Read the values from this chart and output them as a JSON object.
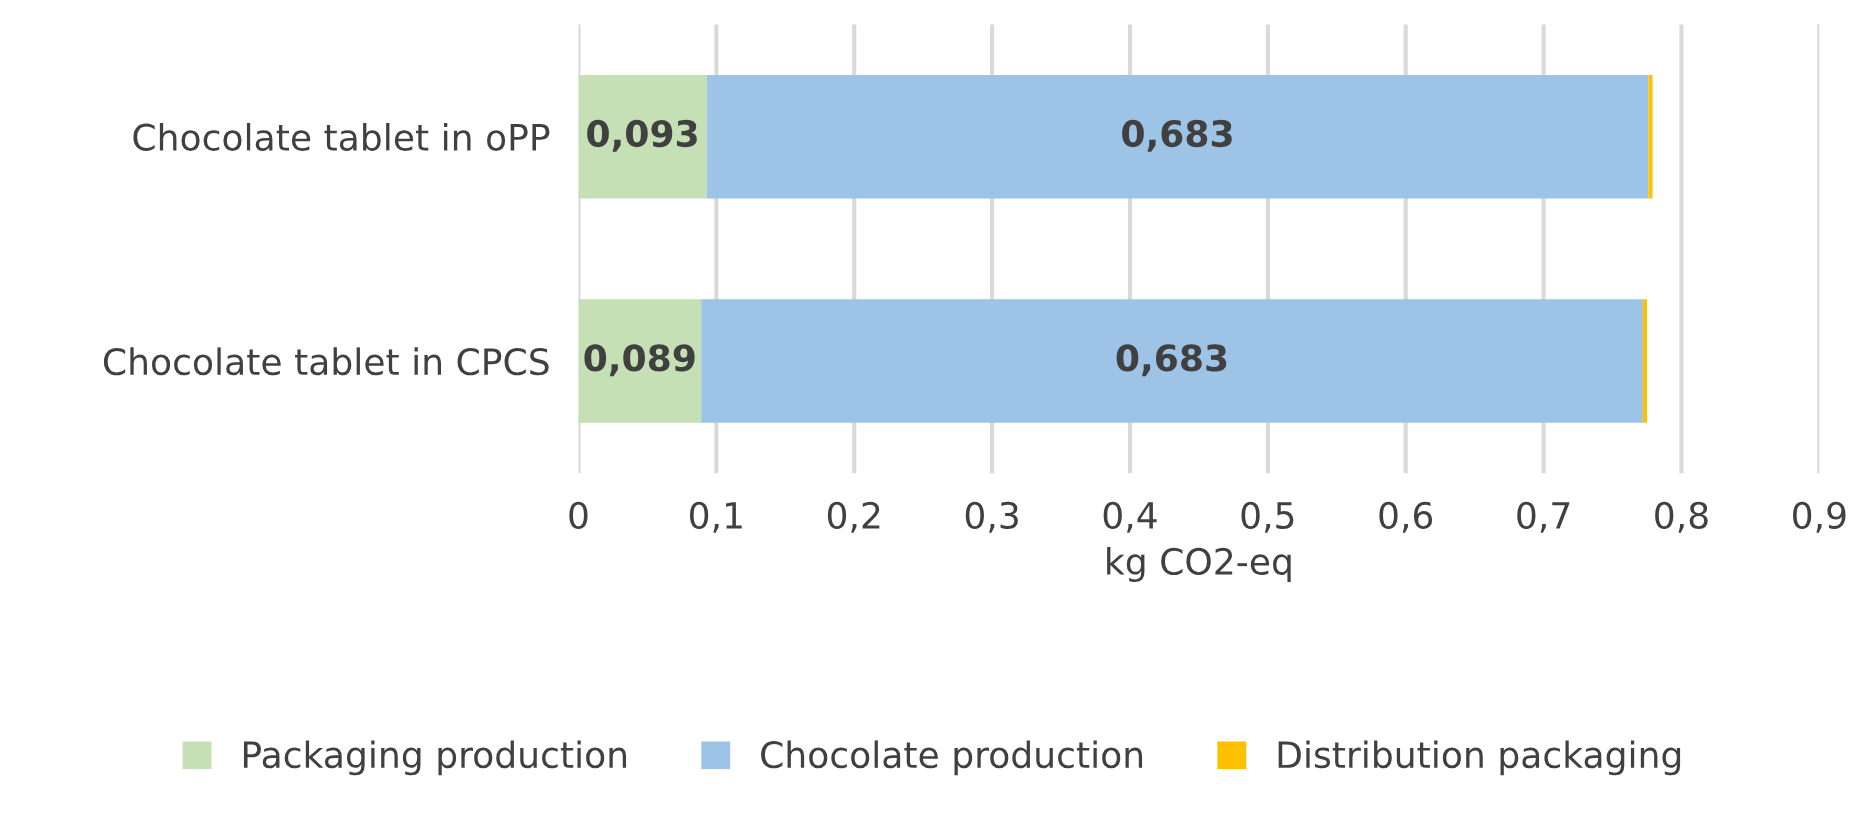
{
  "chart_data": {
    "type": "bar",
    "orientation": "horizontal",
    "stacked": true,
    "categories": [
      "Chocolate tablet in oPP",
      "Chocolate tablet in CPCS"
    ],
    "series": [
      {
        "name": "Packaging production",
        "color": "#c5e0b4",
        "values": [
          0.093,
          0.089
        ],
        "value_labels": [
          "0,093",
          "0,089"
        ]
      },
      {
        "name": "Chocolate production",
        "color": "#9dc3e6",
        "values": [
          0.683,
          0.683
        ],
        "value_labels": [
          "0,683",
          "0,683"
        ]
      },
      {
        "name": "Distribution packaging",
        "color": "#ffc000",
        "values": [
          0.003,
          0.003
        ]
      }
    ],
    "xlabel": "kg CO2-eq",
    "xlim": [
      0,
      0.9
    ],
    "xticks": [
      {
        "value": 0,
        "label": "0"
      },
      {
        "value": 0.1,
        "label": "0,1"
      },
      {
        "value": 0.2,
        "label": "0,2"
      },
      {
        "value": 0.3,
        "label": "0,3"
      },
      {
        "value": 0.4,
        "label": "0,4"
      },
      {
        "value": 0.5,
        "label": "0,5"
      },
      {
        "value": 0.6,
        "label": "0,6"
      },
      {
        "value": 0.7,
        "label": "0,7"
      },
      {
        "value": 0.8,
        "label": "0,8"
      },
      {
        "value": 0.9,
        "label": "0,9"
      }
    ],
    "grid": "x",
    "legend": "bottom"
  }
}
